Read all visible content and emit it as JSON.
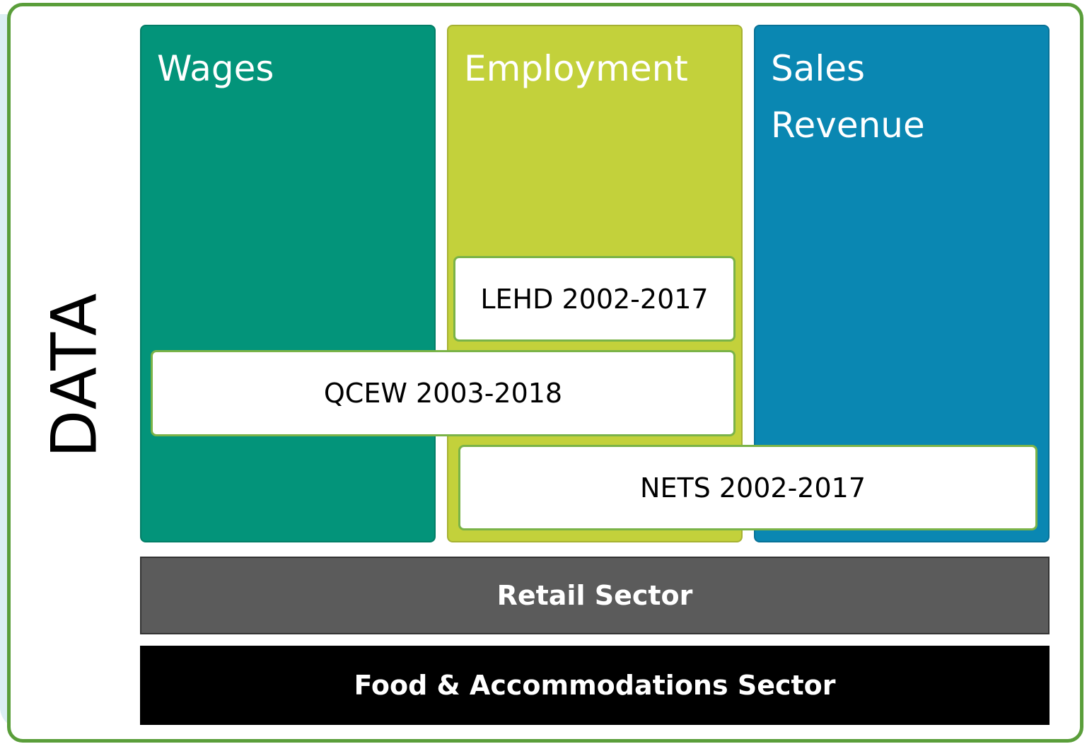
{
  "side_label": "DATA",
  "columns": [
    {
      "title": "Wages"
    },
    {
      "title": "Employment"
    },
    {
      "title": "Sales Revenue"
    }
  ],
  "sources": [
    {
      "label": "LEHD 2002-2017"
    },
    {
      "label": "QCEW 2003-2018"
    },
    {
      "label": "NETS 2002-2017"
    }
  ],
  "sectors": [
    {
      "label": "Retail Sector"
    },
    {
      "label": "Food & Accommodations Sector"
    }
  ]
}
